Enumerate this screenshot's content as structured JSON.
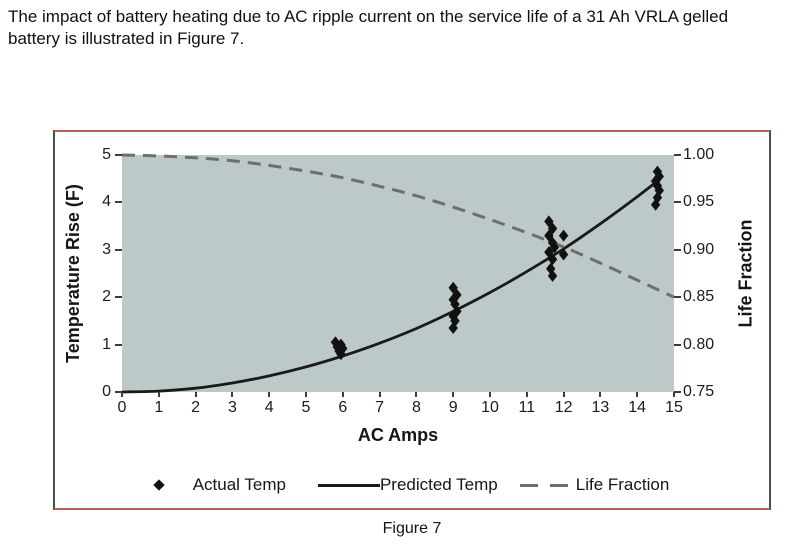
{
  "intro": {
    "line1": "The impact of battery heating due to AC ripple current on the service life of a 31 Ah VRLA gelled",
    "line2": "battery is illustrated in Figure 7."
  },
  "caption": "Figure 7",
  "chart_data": {
    "type": "scatter",
    "title": "",
    "xlabel": "AC Amps",
    "left_axis_label": "Temperature Rise (F)",
    "right_axis_label": "Life Fraction",
    "xlim": [
      0,
      15
    ],
    "left_ylim": [
      0,
      5
    ],
    "right_ylim": [
      0.75,
      1.0
    ],
    "x_ticks": [
      0,
      1,
      2,
      3,
      4,
      5,
      6,
      7,
      8,
      9,
      10,
      11,
      12,
      13,
      14,
      15
    ],
    "left_ticks": [
      5,
      4,
      3,
      2,
      1,
      0
    ],
    "right_ticks": [
      "1.00",
      "0.95",
      "0.90",
      "0.85",
      "0.80",
      "0.75"
    ],
    "grid": false,
    "plot_bg": "#bdc9c9",
    "legend_position": "bottom",
    "legend": [
      {
        "label": "Actual Temp",
        "marker": "diamond"
      },
      {
        "label": "Predicted Temp",
        "marker": "solid-line"
      },
      {
        "label": "Life Fraction",
        "marker": "dashed-line"
      }
    ],
    "series": [
      {
        "name": "Actual Temp",
        "type": "scatter",
        "marker": "diamond",
        "color": "#111111",
        "axis": "left",
        "points": [
          [
            5.8,
            1.05
          ],
          [
            5.95,
            1.0
          ],
          [
            5.85,
            0.95
          ],
          [
            6.0,
            0.92
          ],
          [
            5.9,
            0.86
          ],
          [
            5.95,
            0.8
          ],
          [
            9.0,
            2.2
          ],
          [
            9.1,
            2.05
          ],
          [
            9.0,
            1.95
          ],
          [
            9.05,
            1.85
          ],
          [
            9.1,
            1.7
          ],
          [
            9.0,
            1.6
          ],
          [
            9.05,
            1.5
          ],
          [
            9.0,
            1.35
          ],
          [
            11.6,
            3.6
          ],
          [
            11.7,
            3.45
          ],
          [
            11.6,
            3.3
          ],
          [
            12.0,
            3.3
          ],
          [
            11.7,
            3.15
          ],
          [
            11.75,
            3.05
          ],
          [
            11.6,
            2.95
          ],
          [
            12.0,
            2.9
          ],
          [
            11.7,
            2.8
          ],
          [
            11.65,
            2.6
          ],
          [
            11.7,
            2.45
          ],
          [
            14.55,
            4.65
          ],
          [
            14.6,
            4.55
          ],
          [
            14.5,
            4.45
          ],
          [
            14.55,
            4.35
          ],
          [
            14.6,
            4.25
          ],
          [
            14.55,
            4.1
          ],
          [
            14.5,
            3.95
          ]
        ]
      },
      {
        "name": "Predicted Temp",
        "type": "line",
        "style": "solid",
        "color": "#1a1a1a",
        "axis": "left",
        "points": [
          [
            0,
            0
          ],
          [
            1,
            0.02
          ],
          [
            2,
            0.08
          ],
          [
            3,
            0.19
          ],
          [
            4,
            0.34
          ],
          [
            5,
            0.53
          ],
          [
            6,
            0.76
          ],
          [
            7,
            1.03
          ],
          [
            8,
            1.34
          ],
          [
            9,
            1.7
          ],
          [
            10,
            2.1
          ],
          [
            11,
            2.54
          ],
          [
            12,
            3.02
          ],
          [
            13,
            3.55
          ],
          [
            14,
            4.12
          ],
          [
            14.6,
            4.48
          ]
        ]
      },
      {
        "name": "Life Fraction",
        "type": "line",
        "style": "dashed",
        "color": "#6e6e6e",
        "axis": "right",
        "points": [
          [
            0,
            1.0
          ],
          [
            1,
            0.999
          ],
          [
            2,
            0.997
          ],
          [
            3,
            0.994
          ],
          [
            4,
            0.989
          ],
          [
            5,
            0.983
          ],
          [
            6,
            0.976
          ],
          [
            7,
            0.967
          ],
          [
            8,
            0.957
          ],
          [
            9,
            0.945
          ],
          [
            10,
            0.932
          ],
          [
            11,
            0.918
          ],
          [
            12,
            0.903
          ],
          [
            13,
            0.886
          ],
          [
            14,
            0.868
          ],
          [
            15,
            0.85
          ]
        ]
      }
    ]
  }
}
